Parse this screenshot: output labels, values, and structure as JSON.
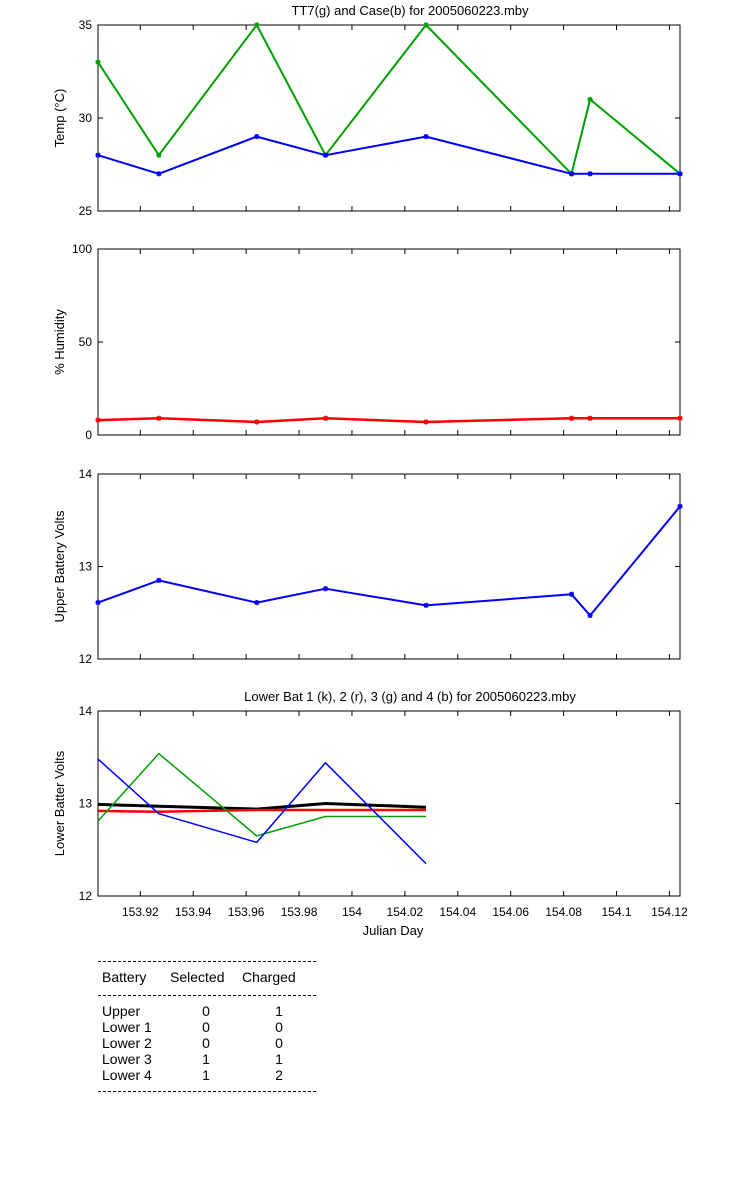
{
  "chart_data": [
    {
      "type": "line",
      "title": "TT7(g) and Case(b) for 2005060223.mby",
      "ylabel": "Temp  (°C)",
      "xlim": [
        153.904,
        154.124
      ],
      "ylim": [
        25,
        35
      ],
      "yticks": [
        "25",
        "30",
        "35"
      ],
      "x": [
        153.904,
        153.927,
        153.964,
        153.99,
        154.028,
        154.083,
        154.09,
        154.124
      ],
      "series": [
        {
          "color": "#00a000",
          "values": [
            33,
            28,
            35,
            28,
            35,
            27,
            31,
            27
          ]
        },
        {
          "color": "#0000ff",
          "values": [
            28,
            27,
            29,
            28,
            29,
            27,
            27,
            27
          ]
        }
      ]
    },
    {
      "type": "line",
      "title": "",
      "ylabel": "% Humidity",
      "xlim": [
        153.904,
        154.124
      ],
      "ylim": [
        0,
        100
      ],
      "yticks": [
        "0",
        "50",
        "100"
      ],
      "x": [
        153.904,
        153.927,
        153.964,
        153.99,
        154.028,
        154.083,
        154.09,
        154.124
      ],
      "series": [
        {
          "color": "#ff0000",
          "values": [
            8,
            9,
            7,
            9,
            7,
            9,
            9,
            9
          ]
        }
      ]
    },
    {
      "type": "line",
      "title": "",
      "ylabel": "Upper Battery Volts",
      "xlim": [
        153.904,
        154.124
      ],
      "ylim": [
        12,
        14
      ],
      "yticks": [
        "12",
        "13",
        "14"
      ],
      "x": [
        153.904,
        153.927,
        153.964,
        153.99,
        154.028,
        154.083,
        154.09,
        154.124
      ],
      "series": [
        {
          "color": "#0000ff",
          "values": [
            12.61,
            12.85,
            12.61,
            12.76,
            12.58,
            12.7,
            12.47,
            13.65
          ]
        }
      ]
    },
    {
      "type": "line",
      "title": "Lower Bat 1 (k), 2 (r), 3 (g) and 4 (b) for 2005060223.mby",
      "ylabel": "Lower Batter Volts",
      "xlabel": "Julian Day",
      "xlim": [
        153.904,
        154.124
      ],
      "ylim": [
        12,
        14
      ],
      "yticks": [
        "12",
        "13",
        "14"
      ],
      "xticks": [
        153.92,
        153.94,
        153.96,
        153.98,
        154,
        154.02,
        154.04,
        154.06,
        154.08,
        154.1,
        154.12
      ],
      "xticklabels": [
        "153.92",
        "153.94",
        "153.96",
        "153.98",
        "154",
        "154.02",
        "154.04",
        "154.06",
        "154.08",
        "154.1",
        "154.12"
      ],
      "x": [
        153.904,
        153.927,
        153.964,
        153.99,
        154.028
      ],
      "series": [
        {
          "color": "#000000",
          "values": [
            12.99,
            12.97,
            12.94,
            13.0,
            12.96
          ]
        },
        {
          "color": "#ff0000",
          "values": [
            12.92,
            12.91,
            12.93,
            12.93,
            12.93
          ]
        },
        {
          "color": "#00a000",
          "values": [
            12.81,
            13.54,
            12.65,
            12.86,
            12.86
          ]
        },
        {
          "color": "#0000ff",
          "values": [
            13.48,
            12.89,
            12.58,
            13.44,
            12.35
          ]
        }
      ]
    }
  ],
  "table": {
    "headers": [
      "Battery",
      "Selected",
      "Charged"
    ],
    "rows": [
      [
        "Upper",
        "0",
        "1"
      ],
      [
        "Lower 1",
        "0",
        "0"
      ],
      [
        "Lower 2",
        "0",
        "0"
      ],
      [
        "Lower 3",
        "1",
        "1"
      ],
      [
        "Lower 4",
        "1",
        "2"
      ]
    ]
  }
}
